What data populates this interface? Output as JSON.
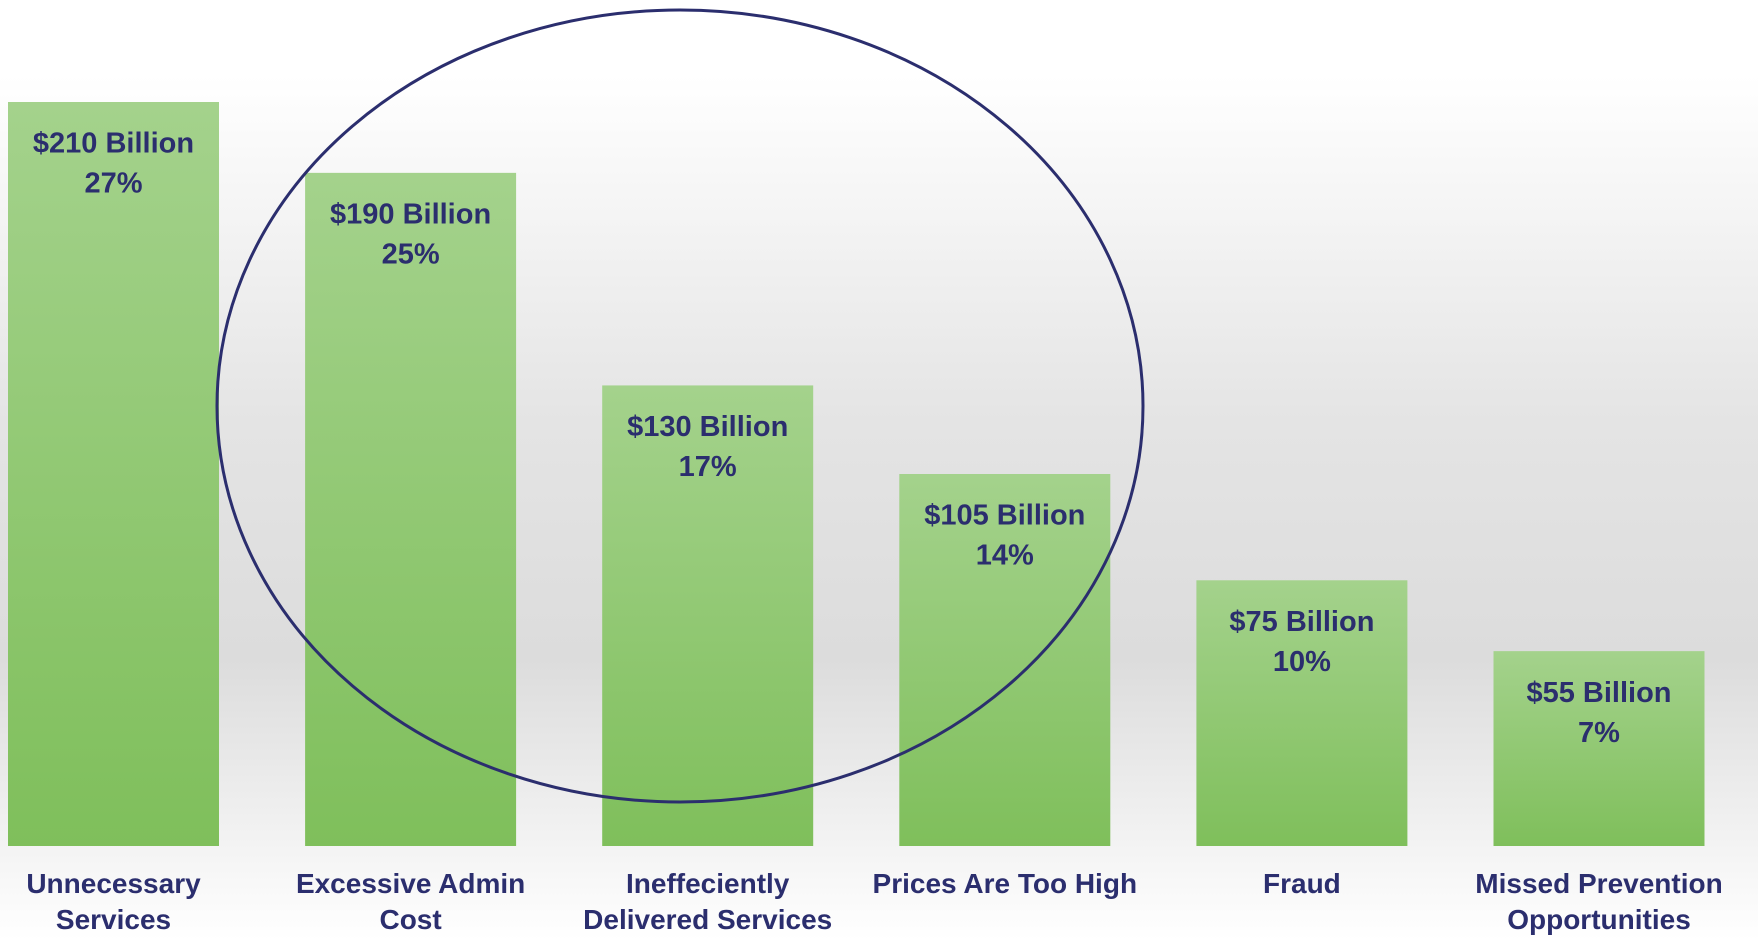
{
  "chart_data": {
    "type": "bar",
    "categories": [
      "Unnecessary Services",
      "Excessive Admin Cost",
      "Ineffeciently Delivered Services",
      "Prices  Are Too High",
      "Fraud",
      "Missed Prevention Opportunities"
    ],
    "values": [
      210,
      190,
      130,
      105,
      75,
      55
    ],
    "value_labels": [
      "$210 Billion",
      "$190 Billion",
      "$130 Billion",
      "$105 Billion",
      "$75 Billion",
      "$55 Billion"
    ],
    "percents": [
      27,
      25,
      17,
      14,
      10,
      7
    ],
    "percent_labels": [
      "27%",
      "25%",
      "17%",
      "14%",
      "10%",
      "7%"
    ],
    "color": "#8cc66c",
    "label_color": "#2b2e6e",
    "ylim": [
      0,
      210
    ]
  }
}
